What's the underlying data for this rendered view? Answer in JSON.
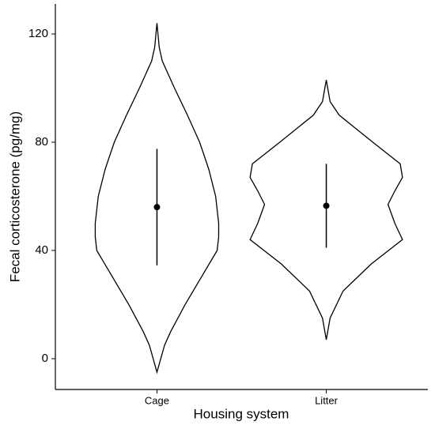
{
  "chart_data": {
    "type": "violin",
    "x_label": "Housing system",
    "y_label": "Fecal corticosterone (pg/mg)",
    "categories": [
      "Cage",
      "Litter"
    ],
    "ylim": [
      -11.4,
      131.1
    ],
    "yticks": [
      0,
      40,
      80,
      120
    ],
    "color": "#000000",
    "violins": [
      {
        "y": [
          124,
          115,
          110,
          100,
          90,
          80,
          70,
          60,
          50,
          45,
          40,
          30,
          20,
          10,
          5,
          0,
          -5
        ],
        "density": [
          0,
          0.03,
          0.07,
          0.23,
          0.4,
          0.56,
          0.68,
          0.77,
          0.81,
          0.81,
          0.79,
          0.58,
          0.37,
          0.18,
          0.1,
          0.05,
          0
        ]
      },
      {
        "y": [
          103,
          95,
          90,
          80,
          72,
          67,
          62,
          57,
          50,
          44,
          35,
          25,
          15,
          7
        ],
        "density": [
          0,
          0.05,
          0.17,
          0.61,
          0.97,
          1.0,
          0.9,
          0.81,
          0.9,
          1.0,
          0.59,
          0.22,
          0.05,
          0
        ]
      }
    ],
    "means": [
      56,
      56.5
    ],
    "lower": [
      34.5,
      41
    ],
    "upper": [
      77.5,
      72
    ]
  }
}
